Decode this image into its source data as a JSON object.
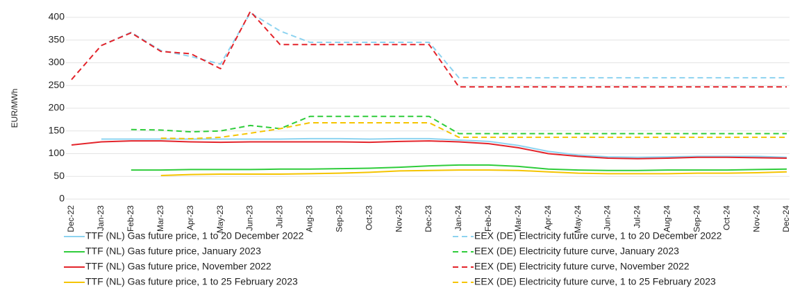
{
  "chart_data": {
    "type": "line",
    "y_label": "EUR/MWh",
    "categories": [
      "Dec-22",
      "Jan-23",
      "Feb-23",
      "Mar-23",
      "Apr-23",
      "May-23",
      "Jun-23",
      "Jul-23",
      "Aug-23",
      "Sep-23",
      "Oct-23",
      "Nov-23",
      "Dec-23",
      "Jan-24",
      "Feb-24",
      "Mar-24",
      "Apr-24",
      "May-24",
      "Jun-24",
      "Jul-24",
      "Aug-24",
      "Sep-24",
      "Oct-24",
      "Nov-24",
      "Dec-24"
    ],
    "ylim": [
      0,
      420
    ],
    "yticks": [
      0,
      50,
      100,
      150,
      200,
      250,
      300,
      350,
      400
    ],
    "grid": true,
    "legend": "bottom",
    "series": [
      {
        "name": "TTF (NL) Gas future price, 1 to 20 December 2022",
        "color": "#8dd3f0",
        "style": "solid",
        "values": [
          null,
          132,
          132,
          132,
          132,
          132,
          132,
          132,
          133,
          133,
          132,
          133,
          133,
          130,
          127,
          118,
          105,
          97,
          93,
          92,
          93,
          94,
          94,
          94,
          92
        ]
      },
      {
        "name": "EEX (DE) Electricity future curve, 1 to 20 December 2022",
        "color": "#8dd3f0",
        "style": "dashed",
        "values": [
          null,
          338,
          367,
          327,
          314,
          297,
          410,
          370,
          345,
          345,
          345,
          345,
          345,
          267,
          267,
          267,
          267,
          267,
          267,
          267,
          267,
          267,
          267,
          267,
          267
        ]
      },
      {
        "name": "TTF (NL) Gas future price, January 2023",
        "color": "#2ecc3a",
        "style": "solid",
        "values": [
          null,
          null,
          64,
          64,
          65,
          65,
          65,
          66,
          66,
          67,
          68,
          70,
          73,
          75,
          75,
          72,
          66,
          64,
          63,
          63,
          64,
          64,
          64,
          65,
          66
        ]
      },
      {
        "name": "EEX (DE) Electricity future curve, January 2023",
        "color": "#2ecc3a",
        "style": "dashed",
        "values": [
          null,
          null,
          153,
          152,
          148,
          150,
          162,
          155,
          182,
          182,
          182,
          182,
          182,
          144,
          144,
          144,
          144,
          144,
          144,
          144,
          144,
          144,
          144,
          144,
          144
        ]
      },
      {
        "name": "TTF (NL) Gas future price, November 2022",
        "color": "#e3232a",
        "style": "solid",
        "values": [
          119,
          126,
          128,
          128,
          126,
          125,
          126,
          126,
          126,
          126,
          125,
          127,
          128,
          126,
          122,
          113,
          100,
          94,
          90,
          89,
          90,
          92,
          92,
          91,
          90
        ]
      },
      {
        "name": "EEX (DE) Electricity future curve, November 2022",
        "color": "#e3232a",
        "style": "dashed",
        "values": [
          263,
          338,
          366,
          325,
          320,
          287,
          413,
          340,
          340,
          340,
          340,
          340,
          340,
          247,
          247,
          247,
          247,
          247,
          247,
          247,
          247,
          247,
          247,
          247,
          247
        ]
      },
      {
        "name": "TTF (NL) Gas future price, 1 to 25 February 2023",
        "color": "#f5c400",
        "style": "solid",
        "values": [
          null,
          null,
          null,
          52,
          54,
          55,
          55,
          55,
          56,
          57,
          59,
          62,
          63,
          64,
          64,
          63,
          60,
          57,
          56,
          56,
          56,
          57,
          57,
          58,
          60
        ]
      },
      {
        "name": "EEX (DE) Electricity future curve, 1 to 25 February 2023",
        "color": "#f5c400",
        "style": "dashed",
        "values": [
          null,
          null,
          null,
          134,
          133,
          136,
          145,
          155,
          168,
          168,
          168,
          168,
          168,
          136,
          136,
          136,
          136,
          136,
          136,
          136,
          136,
          136,
          136,
          136,
          136
        ]
      }
    ]
  }
}
